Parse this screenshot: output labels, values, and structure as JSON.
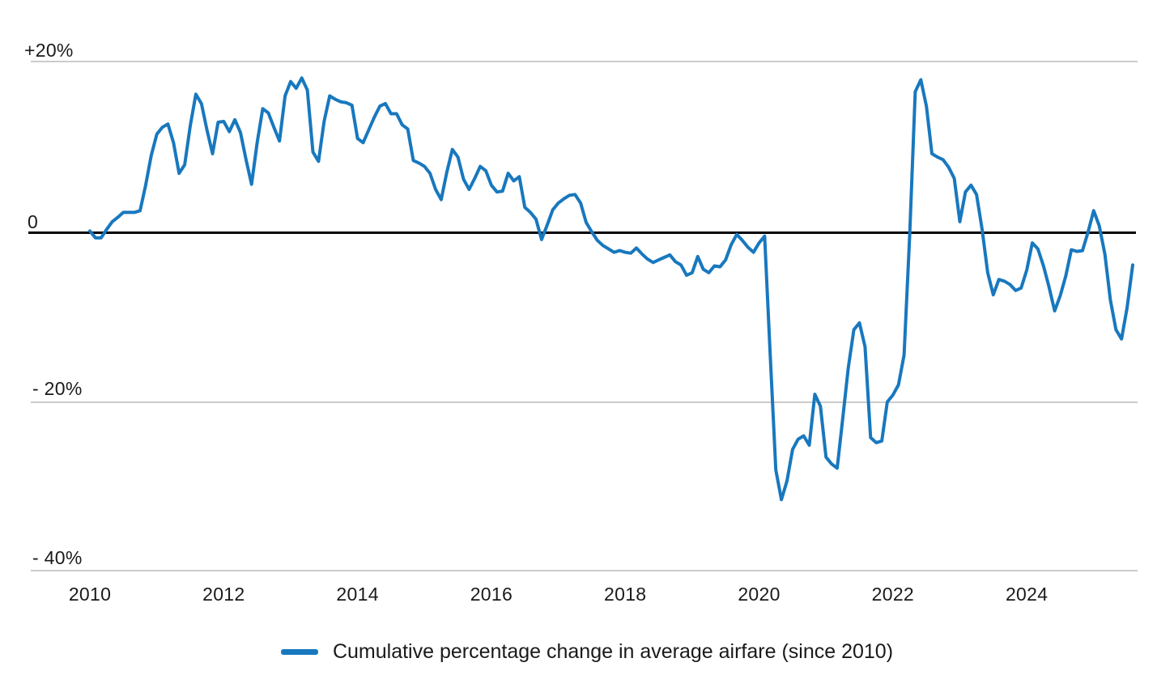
{
  "chart_data": {
    "type": "line",
    "title": "",
    "x_start": "2010-01",
    "frequency": "monthly",
    "series": [
      {
        "name": "Cumulative percentage change in average airfare (since 2010)",
        "color": "#1878be",
        "values": [
          0.1,
          -0.7,
          -0.7,
          0.3,
          1.2,
          1.7,
          2.3,
          2.3,
          2.3,
          2.5,
          5.5,
          9.0,
          11.5,
          12.3,
          12.7,
          10.5,
          6.9,
          7.9,
          12.5,
          16.2,
          15.1,
          12.0,
          9.2,
          12.9,
          13.0,
          11.8,
          13.2,
          11.7,
          8.5,
          5.6,
          10.5,
          14.5,
          14.0,
          12.3,
          10.7,
          16.0,
          17.7,
          16.9,
          18.1,
          16.7,
          9.4,
          8.3,
          13.0,
          16.0,
          15.6,
          15.3,
          15.2,
          14.9,
          11.0,
          10.5,
          12.0,
          13.5,
          14.8,
          15.1,
          13.9,
          13.9,
          12.6,
          12.1,
          8.4,
          8.1,
          7.7,
          6.9,
          5.0,
          3.8,
          7.0,
          9.7,
          8.8,
          6.2,
          5.0,
          6.3,
          7.7,
          7.2,
          5.5,
          4.7,
          4.8,
          6.9,
          6.0,
          6.5,
          2.9,
          2.3,
          1.5,
          -0.9,
          0.8,
          2.6,
          3.4,
          3.9,
          4.3,
          4.4,
          3.4,
          1.1,
          0.0,
          -1.0,
          -1.6,
          -2.0,
          -2.4,
          -2.2,
          -2.4,
          -2.5,
          -1.9,
          -2.6,
          -3.2,
          -3.6,
          -3.3,
          -3.0,
          -2.7,
          -3.5,
          -3.9,
          -5.1,
          -4.8,
          -2.9,
          -4.4,
          -4.8,
          -4.0,
          -4.1,
          -3.3,
          -1.5,
          -0.3,
          -1.0,
          -1.8,
          -2.4,
          -1.3,
          -0.5,
          -14.5,
          -28.0,
          -31.5,
          -29.3,
          -25.6,
          -24.4,
          -24.0,
          -25.1,
          -19.1,
          -20.5,
          -26.5,
          -27.3,
          -27.8,
          -22.0,
          -16.0,
          -11.5,
          -10.7,
          -13.5,
          -24.2,
          -24.8,
          -24.6,
          -20.0,
          -19.2,
          -18.0,
          -14.5,
          -0.5,
          16.5,
          17.9,
          14.8,
          9.2,
          8.8,
          8.5,
          7.6,
          6.3,
          1.2,
          4.7,
          5.5,
          4.4,
          0.3,
          -4.8,
          -7.4,
          -5.6,
          -5.8,
          -6.2,
          -6.9,
          -6.6,
          -4.5,
          -1.3,
          -2.0,
          -4.0,
          -6.5,
          -9.3,
          -7.5,
          -5.2,
          -2.1,
          -2.3,
          -2.2,
          0.0,
          2.5,
          0.7,
          -2.6,
          -8.0,
          -11.5,
          -12.6,
          -8.9,
          -3.9
        ]
      }
    ],
    "y_ticks": [
      {
        "label": "+20%",
        "value": 20
      },
      {
        "label": "0",
        "value": 0
      },
      {
        "label": "- 20%",
        "value": -20
      },
      {
        "label": "- 40%",
        "value": -40
      }
    ],
    "x_ticks": [
      "2010",
      "2012",
      "2014",
      "2016",
      "2018",
      "2020",
      "2022",
      "2024"
    ],
    "ylim": [
      -40,
      20
    ],
    "grid": "horizontal",
    "legend_position": "bottom",
    "legend_label": "Cumulative percentage change in average airfare (since 2010)"
  }
}
